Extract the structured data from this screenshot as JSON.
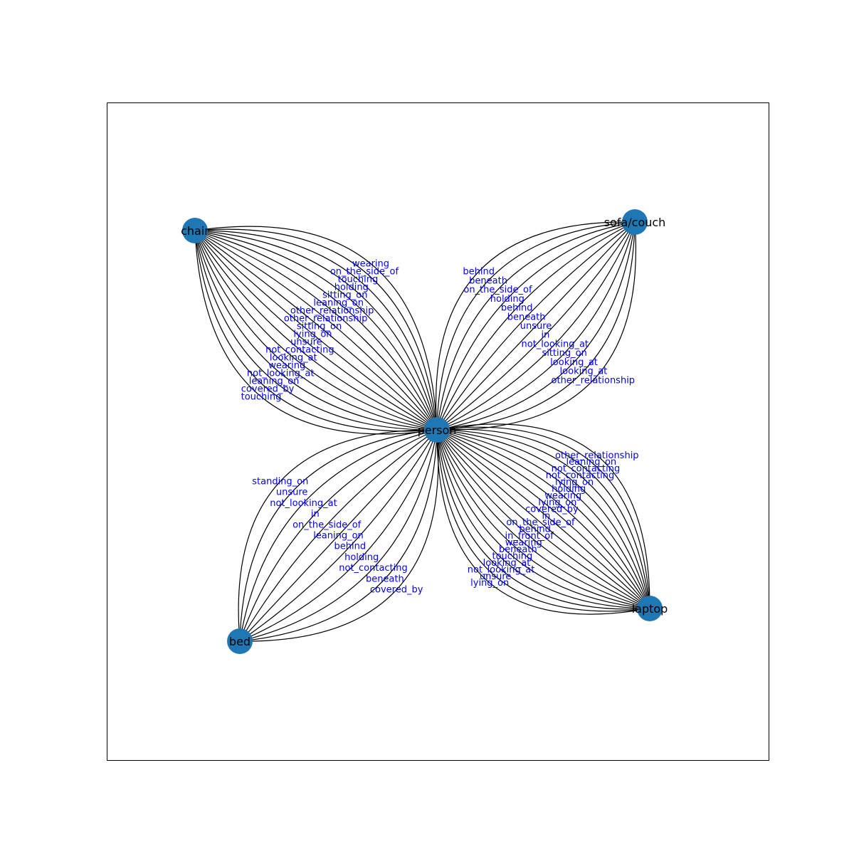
{
  "graph": {
    "node_color": "#1f77b4",
    "edge_color": "#000000",
    "edge_label_color": "#0000ff",
    "nodes": [
      {
        "id": "person",
        "label": "person"
      },
      {
        "id": "chair",
        "label": "chair"
      },
      {
        "id": "sofa",
        "label": "sofa/couch"
      },
      {
        "id": "laptop",
        "label": "laptop"
      },
      {
        "id": "bed",
        "label": "bed"
      }
    ],
    "relations": {
      "chair": [
        "touching",
        "covered_by",
        "leaning_on",
        "not_looking_at",
        "wearing",
        "looking_at",
        "not_contacting",
        "unsure",
        "lying_on",
        "sitting_on",
        "other_relationship",
        "other_relationship",
        "leaning_on",
        "sitting_on",
        "holding",
        "touching",
        "on_the_side_of",
        "wearing"
      ],
      "sofa": [
        "behind",
        "beneath",
        "on_the_side_of",
        "holding",
        "behind",
        "beneath",
        "unsure",
        "in",
        "not_looking_at",
        "sitting_on",
        "looking_at",
        "looking_at",
        "other_relationship"
      ],
      "laptop": [
        "other_relationship",
        "leaning_on",
        "not_contacting",
        "not_contacting",
        "lying_on",
        "holding",
        "wearing",
        "lying_on",
        "covered_by",
        "in",
        "on_the_side_of",
        "behind",
        "in_front_of",
        "wearing",
        "beneath",
        "touching",
        "looking_at",
        "not_looking_at",
        "unsure",
        "lying_on"
      ],
      "bed": [
        "covered_by",
        "beneath",
        "not_contacting",
        "holding",
        "behind",
        "leaning_on",
        "on_the_side_of",
        "in",
        "not_looking_at",
        "unsure",
        "standing_on"
      ]
    }
  }
}
